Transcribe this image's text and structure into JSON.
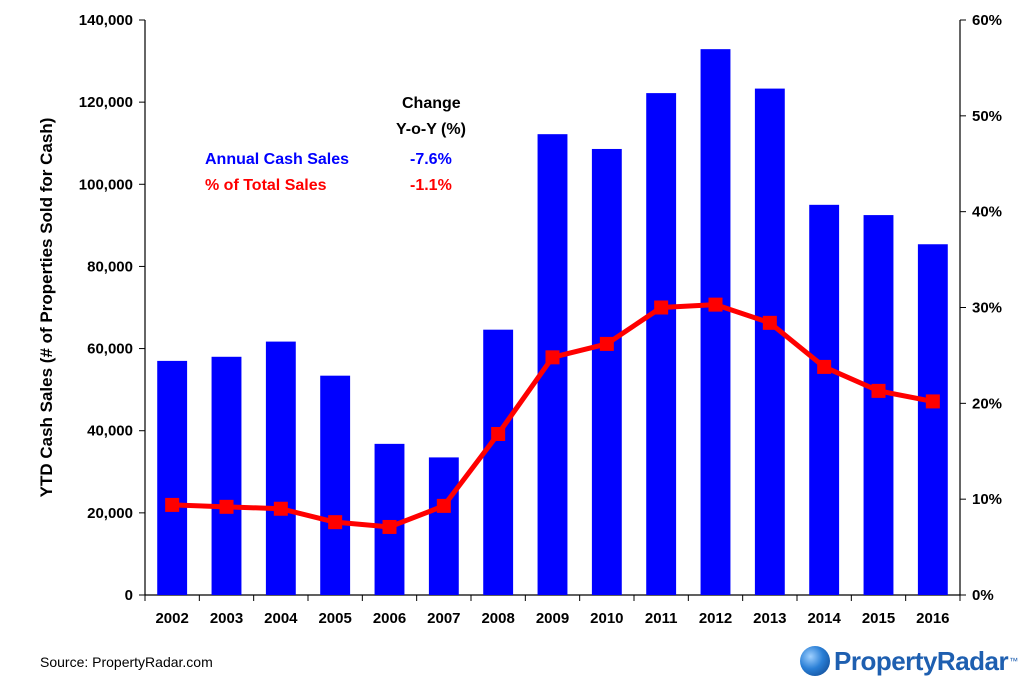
{
  "chart_data": {
    "type": "bar",
    "categories": [
      "2002",
      "2003",
      "2004",
      "2005",
      "2006",
      "2007",
      "2008",
      "2009",
      "2010",
      "2011",
      "2012",
      "2013",
      "2014",
      "2015",
      "2016"
    ],
    "series": [
      {
        "name": "Annual Cash Sales",
        "type": "bar",
        "axis": "left",
        "color": "#0000ff",
        "values": [
          57000,
          58000,
          61700,
          53400,
          36800,
          33500,
          64600,
          112200,
          108600,
          122200,
          132900,
          123300,
          95000,
          92500,
          85400
        ]
      },
      {
        "name": "% of Total Sales",
        "type": "line",
        "axis": "right",
        "color": "#ff0000",
        "values": [
          9.4,
          9.2,
          9.0,
          7.6,
          7.1,
          9.3,
          16.8,
          24.8,
          26.2,
          30.0,
          30.3,
          28.4,
          23.8,
          21.3,
          20.2
        ]
      }
    ],
    "ylabel": "YTD Cash Sales (# of Properties Sold for Cash)",
    "ylim": [
      0,
      140000
    ],
    "yticks": [
      "0",
      "20,000",
      "40,000",
      "60,000",
      "80,000",
      "100,000",
      "120,000",
      "140,000"
    ],
    "y2lim": [
      0,
      60
    ],
    "y2ticks": [
      "0%",
      "10%",
      "20%",
      "30%",
      "40%",
      "50%",
      "60%"
    ],
    "grid": false,
    "annotations": {
      "header_line1": "Change",
      "header_line2": "Y-o-Y (%)",
      "rows": [
        {
          "label": "Annual Cash Sales",
          "change": "-7.6%",
          "color": "#0000ff"
        },
        {
          "label": "% of Total Sales",
          "change": "-1.1%",
          "color": "#ff0000"
        }
      ]
    }
  },
  "footer": {
    "source": "Source: PropertyRadar.com",
    "logo_text": "PropertyRadar",
    "logo_mark": "™",
    "logo_icon": "globe-icon",
    "logo_color": "#1e5fb0"
  }
}
